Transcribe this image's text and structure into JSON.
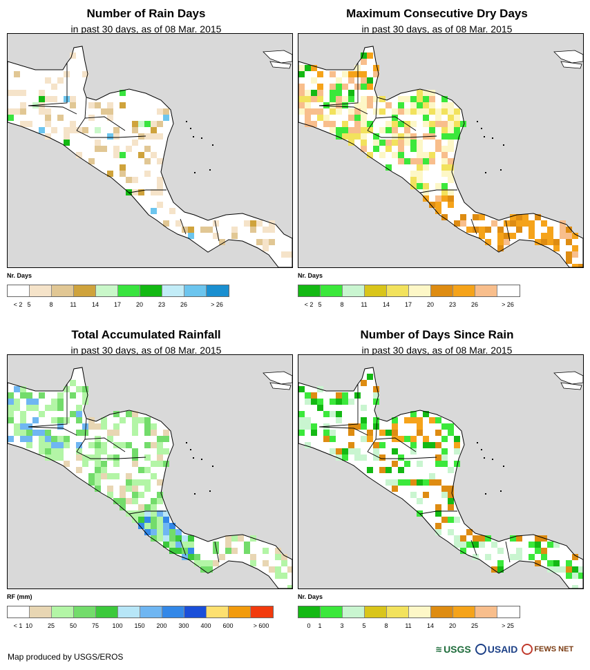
{
  "panels": [
    {
      "title": "Number of Rain Days",
      "subtitle": "in past 30 days, as of 08 Mar. 2015",
      "legend_title": "Nr. Days",
      "colors": [
        "#ffffff",
        "#f5e3c9",
        "#e1c794",
        "#cfa33c",
        "#c9f7c9",
        "#39e43f",
        "#13b913",
        "#c2ecf7",
        "#6cc5ee",
        "#1a8fd0"
      ],
      "labels": [
        "< 2",
        "5",
        "8",
        "11",
        "14",
        "17",
        "20",
        "23",
        "26",
        "> 26"
      ],
      "scheme": "raindays"
    },
    {
      "title": "Maximum Consecutive Dry Days",
      "subtitle": "in past 30 days, as of 08 Mar. 2015",
      "legend_title": "Nr. Days",
      "colors": [
        "#14b914",
        "#3be83b",
        "#c9f5d0",
        "#d9c51a",
        "#f2e25d",
        "#fdf7c7",
        "#de8c12",
        "#f5a31a",
        "#f8be8c",
        "#ffffff"
      ],
      "labels": [
        "< 2",
        "5",
        "8",
        "11",
        "14",
        "17",
        "20",
        "23",
        "26",
        "> 26"
      ],
      "scheme": "dry"
    },
    {
      "title": "Total Accumulated Rainfall",
      "subtitle": "in past 30 days, as of 08 Mar. 2015",
      "legend_title": "RF (mm)",
      "colors": [
        "#ffffff",
        "#e8d6b3",
        "#b3f5a6",
        "#73dc6b",
        "#3cc93c",
        "#b7e6f7",
        "#6fb6f2",
        "#3388e8",
        "#1a4fd9",
        "#fde070",
        "#f29b0d",
        "#f23a0d"
      ],
      "labels": [
        "< 1",
        "10",
        "25",
        "50",
        "75",
        "100",
        "150",
        "200",
        "300",
        "400",
        "600",
        "> 600"
      ],
      "scheme": "rain"
    },
    {
      "title": "Number of Days Since Rain",
      "subtitle": "in past 30 days, as of 08 Mar. 2015",
      "legend_title": "Nr. Days",
      "colors": [
        "#14b914",
        "#3be83b",
        "#c9f5d0",
        "#d9c51a",
        "#f2e25d",
        "#fdf7c7",
        "#de8c12",
        "#f5a31a",
        "#f8be8c",
        "#ffffff"
      ],
      "labels": [
        "0",
        "1",
        "3",
        "5",
        "8",
        "11",
        "14",
        "20",
        "25",
        "> 25"
      ],
      "scheme": "since"
    }
  ],
  "credit": "Map produced by USGS/EROS",
  "logos": {
    "usgs": "USGS",
    "usaid": "USAID",
    "fews": "FEWS NET"
  }
}
